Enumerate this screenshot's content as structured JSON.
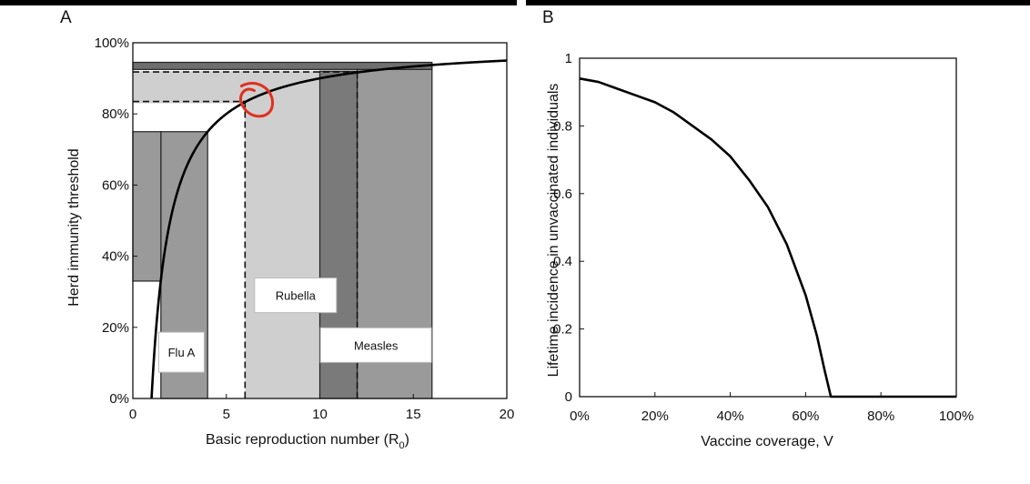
{
  "chart_data": [
    {
      "panel": "A",
      "type": "line",
      "xlabel": "Basic reproduction number (R0)",
      "xlabel_main": "Basic reproduction number (R",
      "xlabel_sub": "0",
      "xlabel_close": ")",
      "ylabel": "Herd immunity threshold",
      "xlim": [
        0,
        20
      ],
      "ylim": [
        0,
        1
      ],
      "xticks": [
        0,
        5,
        10,
        15,
        20
      ],
      "xtick_labels": [
        "0",
        "5",
        "10",
        "15",
        "20"
      ],
      "yticks": [
        0,
        0.2,
        0.4,
        0.6,
        0.8,
        1.0
      ],
      "ytick_labels": [
        "0%",
        "20%",
        "40%",
        "60%",
        "80%",
        "100%"
      ],
      "grid": false,
      "curve": {
        "formula": "1 - 1/R0",
        "x_from": 1,
        "x_to": 20
      },
      "regions": [
        {
          "name": "Flu A",
          "r0_range": [
            1.5,
            4
          ],
          "threshold_range": [
            0.33,
            0.75
          ],
          "color": "#9a9a9a"
        },
        {
          "name": "Rubella",
          "r0_range": [
            6,
            12
          ],
          "threshold_range": [
            0.83,
            0.92
          ],
          "color": "#cfcfcf"
        },
        {
          "name": "Measles",
          "r0_range": [
            12,
            16
          ],
          "threshold_range": [
            0.92,
            0.94
          ],
          "color": "#9a9a9a"
        }
      ],
      "dark_band": {
        "r0_range": [
          10,
          12
        ],
        "color": "#7a7a7a"
      },
      "labels": [
        {
          "text": "Flu A",
          "x": 2.6,
          "y": 0.13
        },
        {
          "text": "Rubella",
          "x": 8.7,
          "y": 0.29
        },
        {
          "text": "Measles",
          "x": 13.0,
          "y": 0.15
        }
      ],
      "annotation": {
        "type": "red-circle",
        "x": 6.2,
        "y": 0.84,
        "color": "#e0301e"
      }
    },
    {
      "panel": "B",
      "type": "line",
      "xlabel": "Vaccine coverage, V",
      "ylabel": "Lifetime incidence in unvaccinated individuals",
      "xlim": [
        0,
        1
      ],
      "ylim": [
        0,
        1
      ],
      "xticks": [
        0,
        0.2,
        0.4,
        0.6,
        0.8,
        1.0
      ],
      "xtick_labels": [
        "0%",
        "20%",
        "40%",
        "60%",
        "80%",
        "100%"
      ],
      "yticks": [
        0,
        0.2,
        0.4,
        0.6,
        0.8,
        1.0
      ],
      "ytick_labels": [
        "0",
        "0.2",
        "0.4",
        "0.6",
        "0.8",
        "1"
      ],
      "grid": false,
      "series": [
        {
          "x": [
            0,
            0.05,
            0.1,
            0.15,
            0.2,
            0.25,
            0.3,
            0.35,
            0.4,
            0.45,
            0.5,
            0.55,
            0.6,
            0.63,
            0.65,
            0.667,
            0.7,
            0.8,
            0.9,
            1.0
          ],
          "y": [
            0.94,
            0.93,
            0.91,
            0.89,
            0.87,
            0.84,
            0.8,
            0.76,
            0.71,
            0.64,
            0.56,
            0.45,
            0.3,
            0.18,
            0.08,
            0.0,
            0.0,
            0.0,
            0.0,
            0.0
          ]
        }
      ]
    }
  ]
}
